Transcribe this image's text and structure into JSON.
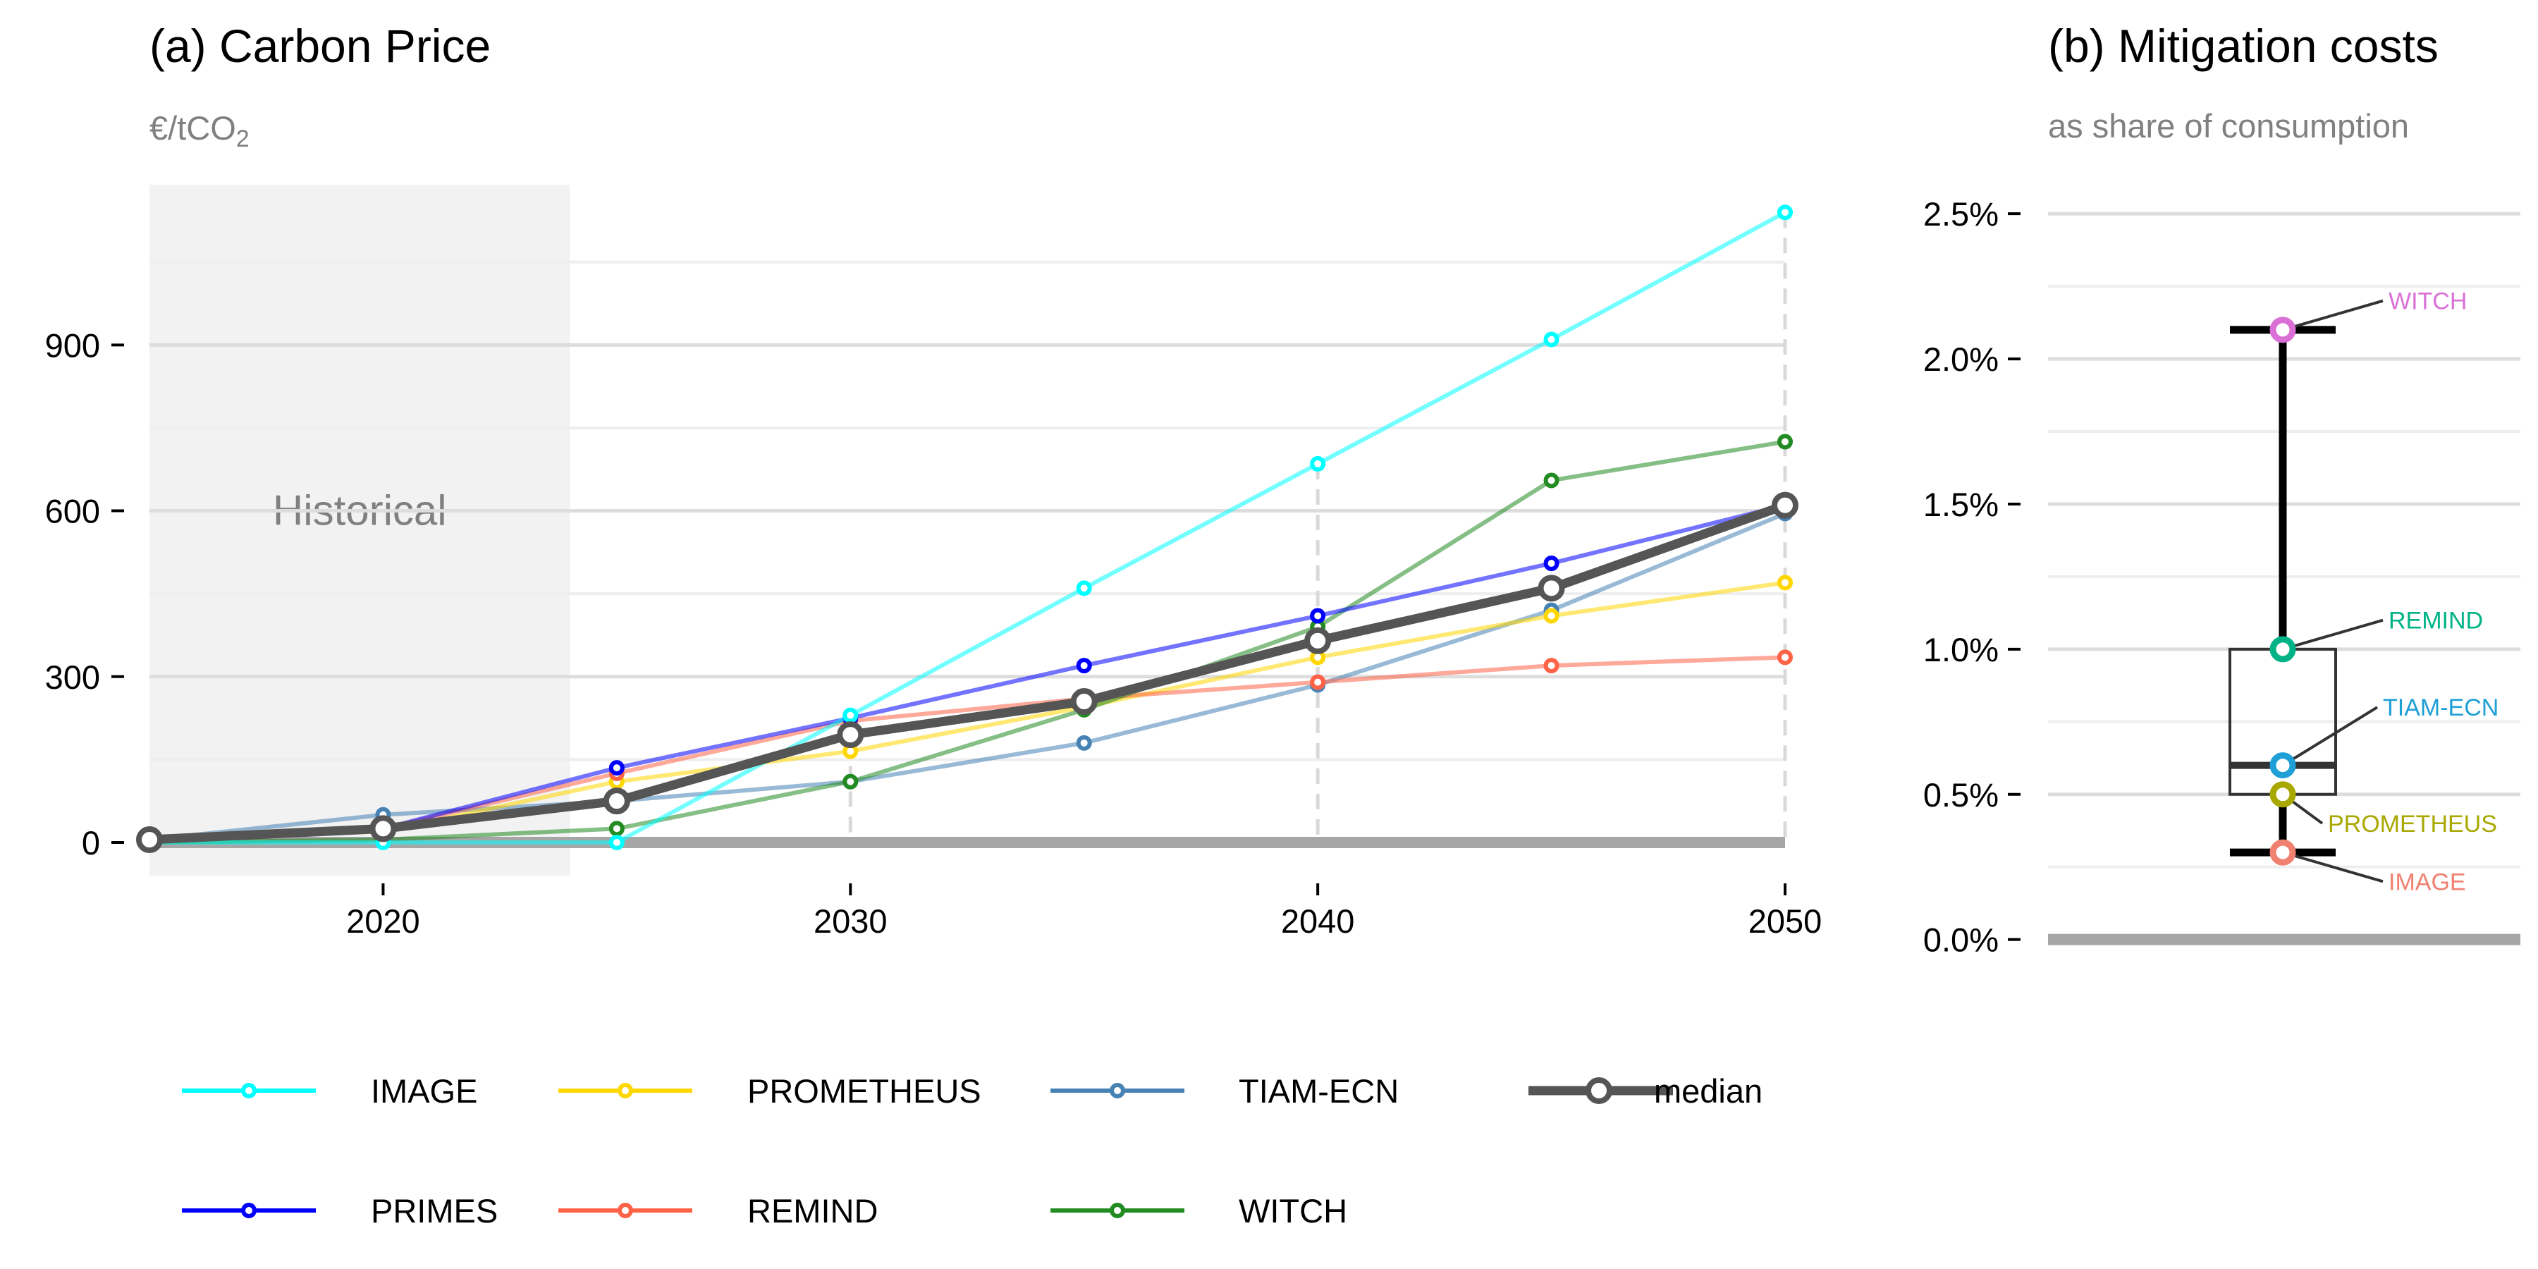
{
  "colors": {
    "IMAGE": "#00ffff",
    "PROMETHEUS": "#ffd700",
    "TIAM-ECN": "#4682b4",
    "median": "#555555",
    "PRIMES": "#0000ff",
    "REMIND": "#ff6347",
    "WITCH": "#228b22",
    "label_WITCH": "#da70d6",
    "label_REMIND": "#00b386",
    "label_TIAM-ECN": "#1e9fd6",
    "label_PROMETHEUS": "#a8a800",
    "label_IMAGE": "#f08070"
  },
  "panel_a": {
    "title": "(a) Carbon Price",
    "unit_main": "€/tCO",
    "unit_sub": "2",
    "shade_label": "Historical"
  },
  "panel_b": {
    "title": "(b) Mitigation costs",
    "subtitle": "as share of consumption"
  },
  "legend": {
    "items": [
      "IMAGE",
      "PROMETHEUS",
      "TIAM-ECN",
      "median",
      "PRIMES",
      "REMIND",
      "WITCH"
    ]
  },
  "chart_data": [
    {
      "type": "line",
      "title": "(a) Carbon Price",
      "ylabel": "€/tCO2",
      "xlim": [
        2015,
        2050
      ],
      "ylim": [
        -60,
        1190
      ],
      "x_ticks": [
        2020,
        2030,
        2040,
        2050
      ],
      "y_ticks": [
        0,
        300,
        600,
        900
      ],
      "y_tick_labels": [
        "0",
        "300",
        "600",
        "900"
      ],
      "grid": true,
      "historical_shading": [
        2015,
        2024
      ],
      "vertical_dashed_at": [
        2030,
        2040,
        2050
      ],
      "legend_position": "bottom",
      "series": [
        {
          "name": "IMAGE",
          "x": [
            2015,
            2020,
            2025,
            2030,
            2035,
            2040,
            2045,
            2050
          ],
          "values": [
            0,
            0,
            0,
            230,
            460,
            685,
            910,
            1140
          ]
        },
        {
          "name": "PROMETHEUS",
          "x": [
            2015,
            2020,
            2025,
            2030,
            2035,
            2040,
            2045,
            2050
          ],
          "values": [
            5,
            20,
            110,
            165,
            245,
            335,
            410,
            470
          ]
        },
        {
          "name": "TIAM-ECN",
          "x": [
            2015,
            2020,
            2025,
            2030,
            2035,
            2040,
            2045,
            2050
          ],
          "values": [
            5,
            50,
            75,
            110,
            180,
            285,
            420,
            595
          ]
        },
        {
          "name": "PRIMES",
          "x": [
            2015,
            2020,
            2025,
            2030,
            2035,
            2040,
            2045,
            2050
          ],
          "values": [
            5,
            25,
            135,
            225,
            320,
            410,
            505,
            610
          ]
        },
        {
          "name": "REMIND",
          "x": [
            2015,
            2020,
            2025,
            2030,
            2035,
            2040,
            2045,
            2050
          ],
          "values": [
            5,
            25,
            125,
            220,
            260,
            290,
            320,
            335
          ]
        },
        {
          "name": "WITCH",
          "x": [
            2015,
            2020,
            2025,
            2030,
            2035,
            2040,
            2045,
            2050
          ],
          "values": [
            0,
            5,
            25,
            110,
            240,
            390,
            655,
            725
          ]
        },
        {
          "name": "median",
          "x": [
            2015,
            2020,
            2025,
            2030,
            2035,
            2040,
            2045,
            2050
          ],
          "values": [
            5,
            25,
            75,
            195,
            255,
            365,
            460,
            610
          ]
        }
      ]
    },
    {
      "type": "box",
      "title": "(b) Mitigation costs",
      "subtitle": "as share of consumption",
      "ylim": [
        -0.0003,
        0.026
      ],
      "y_ticks": [
        0.0,
        0.005,
        0.01,
        0.015,
        0.02,
        0.025
      ],
      "y_tick_labels": [
        "0.0%",
        "0.5%",
        "1.0%",
        "1.5%",
        "2.0%",
        "2.5%"
      ],
      "grid": true,
      "box": {
        "whisker_low": 0.003,
        "q1": 0.005,
        "median": 0.006,
        "q3": 0.01,
        "whisker_high": 0.021
      },
      "points": [
        {
          "name": "WITCH",
          "value": 0.021
        },
        {
          "name": "REMIND",
          "value": 0.01
        },
        {
          "name": "TIAM-ECN",
          "value": 0.006
        },
        {
          "name": "PROMETHEUS",
          "value": 0.005
        },
        {
          "name": "IMAGE",
          "value": 0.003
        }
      ]
    }
  ]
}
